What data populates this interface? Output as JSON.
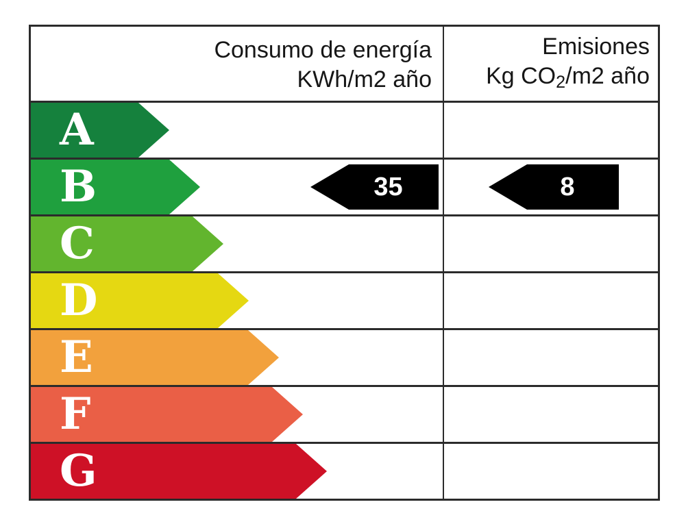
{
  "header": {
    "consumption_title": "Consumo de energía",
    "consumption_unit": "KWh/m2 año",
    "emissions_title": "Emisiones",
    "emissions_unit_prefix": "Kg CO",
    "emissions_unit_sub": "2",
    "emissions_unit_suffix": "/m2 año"
  },
  "chart_data": {
    "type": "table",
    "title": "Energy efficiency rating label (Spanish energy certificate)",
    "columns": [
      "Consumo de energía KWh/m2 año",
      "Emisiones Kg CO2/m2 año"
    ],
    "ratings": [
      {
        "letter": "A",
        "color": "#15813D",
        "band_width": 202
      },
      {
        "letter": "B",
        "color": "#1FA03E",
        "band_width": 247
      },
      {
        "letter": "C",
        "color": "#62B52E",
        "band_width": 281
      },
      {
        "letter": "D",
        "color": "#E5D812",
        "band_width": 318
      },
      {
        "letter": "E",
        "color": "#F2A13D",
        "band_width": 362
      },
      {
        "letter": "F",
        "color": "#EA5F46",
        "band_width": 397
      },
      {
        "letter": "G",
        "color": "#CE1126",
        "band_width": 432
      }
    ],
    "values": {
      "consumption": {
        "rating": "B",
        "value": "35"
      },
      "emissions": {
        "rating": "B",
        "value": "8"
      }
    },
    "arrow_color": "#000000",
    "letter_color": "#FFFFFF"
  }
}
